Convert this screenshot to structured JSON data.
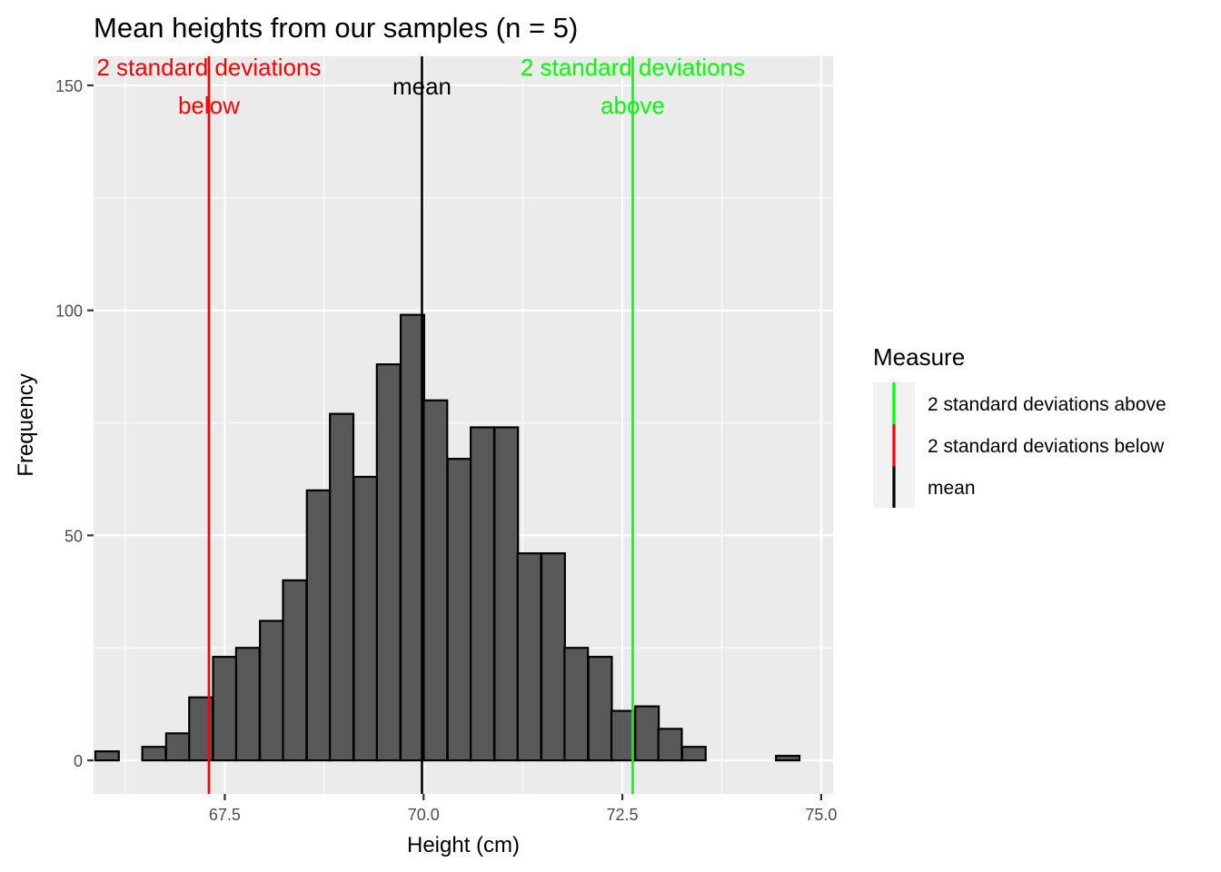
{
  "chart_data": {
    "type": "bar",
    "subtype": "histogram",
    "title": "Mean heights from our samples (n = 5)",
    "xlabel": "Height (cm)",
    "ylabel": "Frequency",
    "xlim": [
      65.85,
      75.15
    ],
    "ylim": [
      -7.45,
      156.45
    ],
    "x_ticks": [
      67.5,
      70.0,
      72.5,
      75.0
    ],
    "x_tick_labels": [
      "67.5",
      "70.0",
      "72.5",
      "75.0"
    ],
    "y_ticks": [
      0,
      50,
      100,
      150
    ],
    "y_tick_labels": [
      "0",
      "50",
      "100",
      "150"
    ],
    "grid": true,
    "bar_fill": "#595959",
    "bar_outline": "#000000",
    "panel_background": "#ebebeb",
    "bin_width": 0.295,
    "bins": [
      {
        "x": 66.02,
        "count": 2
      },
      {
        "x": 66.32,
        "count": 0
      },
      {
        "x": 66.61,
        "count": 3
      },
      {
        "x": 66.91,
        "count": 6
      },
      {
        "x": 67.2,
        "count": 14
      },
      {
        "x": 67.5,
        "count": 23
      },
      {
        "x": 67.79,
        "count": 25
      },
      {
        "x": 68.09,
        "count": 31
      },
      {
        "x": 68.38,
        "count": 40
      },
      {
        "x": 68.68,
        "count": 60
      },
      {
        "x": 68.97,
        "count": 77
      },
      {
        "x": 69.27,
        "count": 63
      },
      {
        "x": 69.56,
        "count": 88
      },
      {
        "x": 69.86,
        "count": 99
      },
      {
        "x": 70.15,
        "count": 80
      },
      {
        "x": 70.45,
        "count": 67
      },
      {
        "x": 70.74,
        "count": 74
      },
      {
        "x": 71.04,
        "count": 74
      },
      {
        "x": 71.33,
        "count": 46
      },
      {
        "x": 71.63,
        "count": 46
      },
      {
        "x": 71.92,
        "count": 25
      },
      {
        "x": 72.22,
        "count": 23
      },
      {
        "x": 72.51,
        "count": 11
      },
      {
        "x": 72.81,
        "count": 12
      },
      {
        "x": 73.1,
        "count": 7
      },
      {
        "x": 73.4,
        "count": 3
      },
      {
        "x": 73.69,
        "count": 0
      },
      {
        "x": 73.99,
        "count": 0
      },
      {
        "x": 74.28,
        "count": 0
      },
      {
        "x": 74.58,
        "count": 1
      }
    ],
    "reference_lines": [
      {
        "name": "2 standard deviations below",
        "x": 67.3,
        "color": "#ff0000",
        "label_lines": [
          "2 standard deviations",
          "below"
        ]
      },
      {
        "name": "mean",
        "x": 69.98,
        "color": "#000000",
        "label_lines": [
          "mean"
        ]
      },
      {
        "name": "2 standard deviations above",
        "x": 72.63,
        "color": "#00ff00",
        "label_lines": [
          "2 standard deviations",
          "above"
        ]
      }
    ],
    "legend": {
      "title": "Measure",
      "placement": "right",
      "entries": [
        {
          "label": "2 standard deviations above",
          "color": "#00ff00"
        },
        {
          "label": "2 standard deviations below",
          "color": "#ff0000"
        },
        {
          "label": "mean",
          "color": "#000000"
        }
      ]
    }
  }
}
